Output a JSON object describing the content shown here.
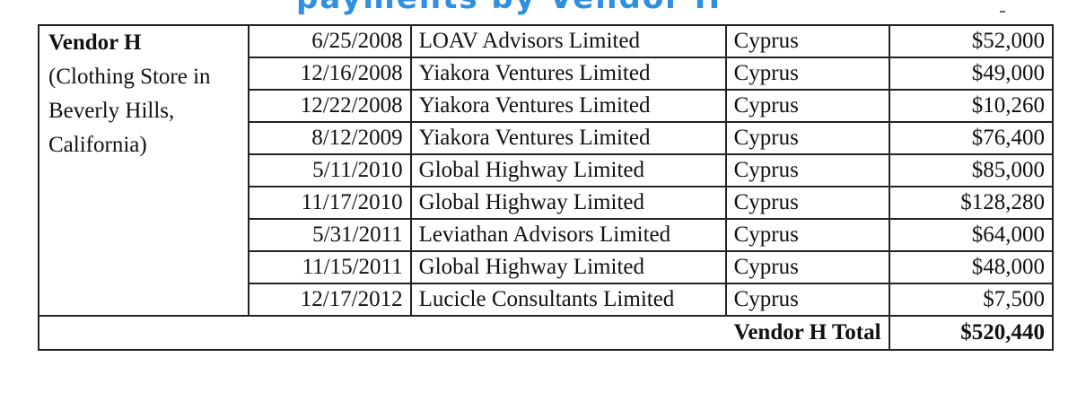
{
  "header_fragment": "payments by Vendor H",
  "vendor": {
    "name": "Vendor H",
    "description": "(Clothing Store in Beverly Hills, California)"
  },
  "rows": [
    {
      "date": "6/25/2008",
      "payee": "LOAV Advisors Limited",
      "country": "Cyprus",
      "amount": "$52,000"
    },
    {
      "date": "12/16/2008",
      "payee": "Yiakora Ventures Limited",
      "country": "Cyprus",
      "amount": "$49,000"
    },
    {
      "date": "12/22/2008",
      "payee": "Yiakora Ventures Limited",
      "country": "Cyprus",
      "amount": "$10,260"
    },
    {
      "date": "8/12/2009",
      "payee": "Yiakora Ventures Limited",
      "country": "Cyprus",
      "amount": "$76,400"
    },
    {
      "date": "5/11/2010",
      "payee": "Global Highway Limited",
      "country": "Cyprus",
      "amount": "$85,000"
    },
    {
      "date": "11/17/2010",
      "payee": "Global Highway Limited",
      "country": "Cyprus",
      "amount": "$128,280"
    },
    {
      "date": "5/31/2011",
      "payee": "Leviathan Advisors Limited",
      "country": "Cyprus",
      "amount": "$64,000"
    },
    {
      "date": "11/15/2011",
      "payee": "Global Highway Limited",
      "country": "Cyprus",
      "amount": "$48,000"
    },
    {
      "date": "12/17/2012",
      "payee": "Lucicle Consultants Limited",
      "country": "Cyprus",
      "amount": "$7,500"
    }
  ],
  "total": {
    "label": "Vendor H Total",
    "amount": "$520,440"
  }
}
